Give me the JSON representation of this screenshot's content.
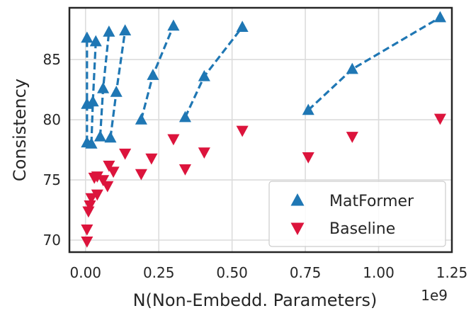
{
  "chart_data": {
    "type": "scatter",
    "xlabel": "N(Non-Embedd. Parameters)",
    "ylabel": "Consistency",
    "x_offset_label": "1e9",
    "x_scale": 1000000000.0,
    "xlim": [
      -0.055,
      1.25
    ],
    "ylim": [
      69,
      89.3
    ],
    "x_ticks": [
      0.0,
      0.25,
      0.5,
      0.75,
      1.0,
      1.25
    ],
    "x_tick_labels": [
      "0.00",
      "0.25",
      "0.50",
      "0.75",
      "1.00",
      "1.25"
    ],
    "y_ticks": [
      70,
      75,
      80,
      85
    ],
    "y_tick_labels": [
      "70",
      "75",
      "80",
      "85"
    ],
    "grid": true,
    "legend_position": "lower-right",
    "colors": {
      "MatFormer": "#1f77b4",
      "Baseline": "#dc143c"
    },
    "series": [
      {
        "name": "MatFormer",
        "marker": "triangle-up",
        "line_style": "dashed",
        "groups": [
          [
            [
              0.005,
              78.1
            ],
            [
              0.005,
              81.3
            ],
            [
              0.005,
              86.8
            ]
          ],
          [
            [
              0.02,
              78.0
            ],
            [
              0.025,
              81.5
            ],
            [
              0.035,
              86.5
            ]
          ],
          [
            [
              0.05,
              78.6
            ],
            [
              0.06,
              82.6
            ],
            [
              0.08,
              87.3
            ]
          ],
          [
            [
              0.085,
              78.5
            ],
            [
              0.105,
              82.3
            ],
            [
              0.135,
              87.4
            ]
          ],
          [
            [
              0.19,
              80.0
            ],
            [
              0.23,
              83.7
            ],
            [
              0.3,
              87.8
            ]
          ],
          [
            [
              0.34,
              80.2
            ],
            [
              0.405,
              83.6
            ],
            [
              0.535,
              87.7
            ]
          ],
          [
            [
              0.76,
              80.8
            ],
            [
              0.91,
              84.2
            ],
            [
              1.21,
              88.5
            ]
          ]
        ]
      },
      {
        "name": "Baseline",
        "marker": "triangle-down",
        "points": [
          [
            0.005,
            69.9
          ],
          [
            0.005,
            70.9
          ],
          [
            0.01,
            72.4
          ],
          [
            0.015,
            72.9
          ],
          [
            0.02,
            73.5
          ],
          [
            0.03,
            75.2
          ],
          [
            0.04,
            75.3
          ],
          [
            0.04,
            73.8
          ],
          [
            0.06,
            75.0
          ],
          [
            0.075,
            74.5
          ],
          [
            0.08,
            76.2
          ],
          [
            0.095,
            75.7
          ],
          [
            0.135,
            77.2
          ],
          [
            0.19,
            75.5
          ],
          [
            0.225,
            76.8
          ],
          [
            0.3,
            78.4
          ],
          [
            0.34,
            75.9
          ],
          [
            0.405,
            77.3
          ],
          [
            0.535,
            79.1
          ],
          [
            0.76,
            76.9
          ],
          [
            0.91,
            78.6
          ],
          [
            1.21,
            80.1
          ]
        ]
      }
    ]
  }
}
